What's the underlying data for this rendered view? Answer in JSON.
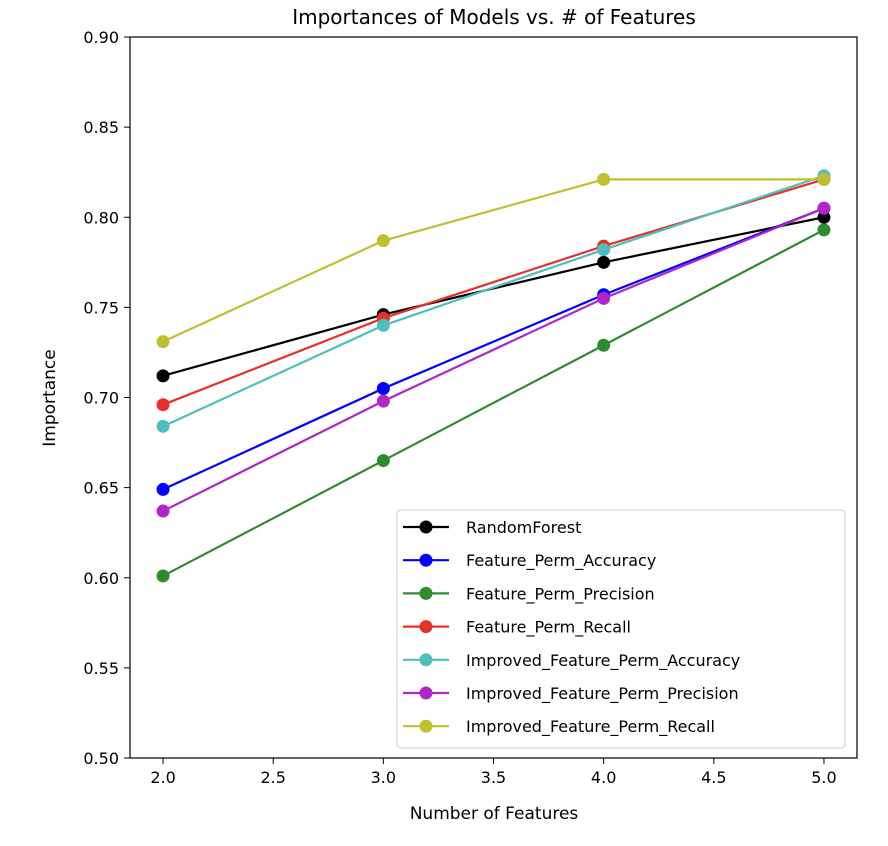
{
  "chart_data": {
    "type": "line",
    "title": "Importances of Models vs. # of Features",
    "xlabel": "Number of Features",
    "ylabel": "Importance",
    "x": [
      2.0,
      3.0,
      4.0,
      5.0
    ],
    "xlim": [
      1.85,
      5.15
    ],
    "ylim": [
      0.5,
      0.9
    ],
    "xticks": [
      2.0,
      2.5,
      3.0,
      3.5,
      4.0,
      4.5,
      5.0
    ],
    "xtick_labels": [
      "2.0",
      "2.5",
      "3.0",
      "3.5",
      "4.0",
      "4.5",
      "5.0"
    ],
    "yticks": [
      0.5,
      0.55,
      0.6,
      0.65,
      0.7,
      0.75,
      0.8,
      0.85,
      0.9
    ],
    "ytick_labels": [
      "0.50",
      "0.55",
      "0.60",
      "0.65",
      "0.70",
      "0.75",
      "0.80",
      "0.85",
      "0.90"
    ],
    "grid": false,
    "legend_position": "lower-right",
    "series": [
      {
        "name": "RandomForest",
        "color": "#000000",
        "values": [
          0.712,
          0.746,
          0.775,
          0.8
        ]
      },
      {
        "name": "Feature_Perm_Accuracy",
        "color": "#0000ff",
        "values": [
          0.649,
          0.705,
          0.757,
          0.805
        ]
      },
      {
        "name": "Feature_Perm_Precision",
        "color": "#2e8b2e",
        "values": [
          0.601,
          0.665,
          0.729,
          0.793
        ]
      },
      {
        "name": "Feature_Perm_Recall",
        "color": "#e8302a",
        "values": [
          0.696,
          0.744,
          0.784,
          0.821
        ]
      },
      {
        "name": "Improved_Feature_Perm_Accuracy",
        "color": "#4dbfbf",
        "values": [
          0.684,
          0.74,
          0.782,
          0.823
        ]
      },
      {
        "name": "Improved_Feature_Perm_Precision",
        "color": "#b026c9",
        "values": [
          0.637,
          0.698,
          0.755,
          0.805
        ]
      },
      {
        "name": "Improved_Feature_Perm_Recall",
        "color": "#bfbf30",
        "values": [
          0.731,
          0.787,
          0.821,
          0.821
        ]
      }
    ]
  }
}
